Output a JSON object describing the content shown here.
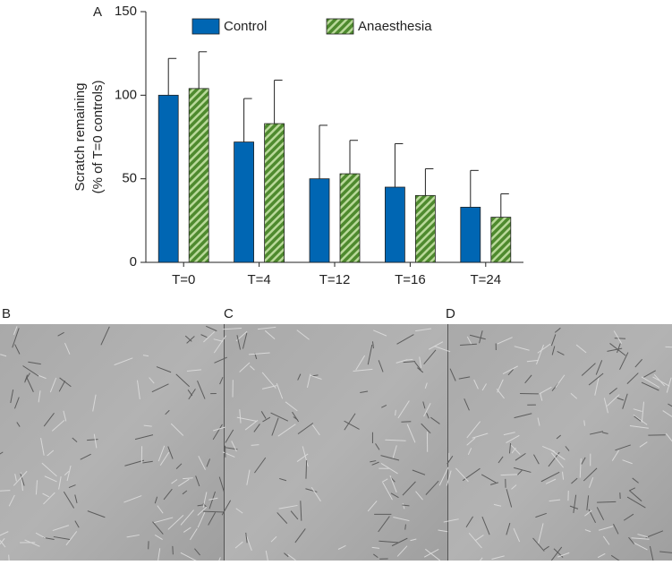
{
  "panel_labels": [
    "A",
    "B",
    "C",
    "D"
  ],
  "chart_data": {
    "type": "bar",
    "ylabel": [
      "Scratch remaining",
      "(% of T=0 controls)"
    ],
    "categories": [
      "T=0",
      "T=4",
      "T=12",
      "T=16",
      "T=24"
    ],
    "series": [
      {
        "name": "Control",
        "color": "#0066b3",
        "values": [
          100,
          72,
          50,
          45,
          33
        ],
        "errors": [
          22,
          26,
          32,
          26,
          22
        ]
      },
      {
        "name": "Anaesthesia",
        "color": "#4e8a2e",
        "values": [
          104,
          83,
          53,
          40,
          27
        ],
        "errors": [
          22,
          26,
          20,
          16,
          14
        ]
      }
    ],
    "ylim": [
      0,
      150
    ],
    "yticks": [
      0,
      50,
      100,
      150
    ],
    "grid": false
  }
}
